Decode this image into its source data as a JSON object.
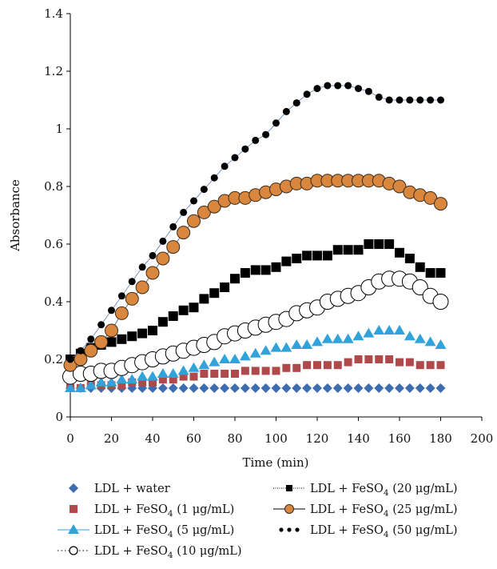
{
  "chart_data": {
    "type": "scatter",
    "title": "",
    "xlabel": "Time (min)",
    "ylabel": "Absorbance",
    "xlim": [
      0,
      200
    ],
    "ylim": [
      0,
      1.4
    ],
    "xticks": [
      0,
      20,
      40,
      60,
      80,
      100,
      120,
      140,
      160,
      180,
      200
    ],
    "yticks": [
      0,
      0.2,
      0.4,
      0.6,
      0.8,
      1,
      1.2,
      1.4
    ],
    "xtick_labels": [
      "0",
      "20",
      "40",
      "60",
      "80",
      "100",
      "120",
      "140",
      "160",
      "180",
      "200"
    ],
    "ytick_labels": [
      "0",
      "0.2",
      "0.4",
      "0.6",
      "0.8",
      "1",
      "1.2",
      "1.4"
    ],
    "grid": false,
    "legend_position": "bottom",
    "x": [
      0,
      5,
      10,
      15,
      20,
      25,
      30,
      35,
      40,
      45,
      50,
      55,
      60,
      65,
      70,
      75,
      80,
      85,
      90,
      95,
      100,
      105,
      110,
      115,
      120,
      125,
      130,
      135,
      140,
      145,
      150,
      155,
      160,
      165,
      170,
      175,
      180
    ],
    "series": [
      {
        "name": "LDL + water",
        "label_main": "LDL + water",
        "label_sub": "",
        "label_tail": "",
        "marker": "diamond",
        "color": "#3d6db0",
        "values": [
          0.1,
          0.1,
          0.1,
          0.1,
          0.1,
          0.1,
          0.1,
          0.1,
          0.1,
          0.1,
          0.1,
          0.1,
          0.1,
          0.1,
          0.1,
          0.1,
          0.1,
          0.1,
          0.1,
          0.1,
          0.1,
          0.1,
          0.1,
          0.1,
          0.1,
          0.1,
          0.1,
          0.1,
          0.1,
          0.1,
          0.1,
          0.1,
          0.1,
          0.1,
          0.1,
          0.1,
          0.1
        ]
      },
      {
        "name": "LDL + FeSO4 (1 μg/mL)",
        "label_main": "LDL + FeSO",
        "label_sub": "4",
        "label_tail": " (1 μg/mL)",
        "marker": "square",
        "color": "#b04a4a",
        "values": [
          0.1,
          0.1,
          0.11,
          0.11,
          0.11,
          0.11,
          0.12,
          0.12,
          0.12,
          0.13,
          0.13,
          0.14,
          0.14,
          0.15,
          0.15,
          0.15,
          0.15,
          0.16,
          0.16,
          0.16,
          0.16,
          0.17,
          0.17,
          0.18,
          0.18,
          0.18,
          0.18,
          0.19,
          0.2,
          0.2,
          0.2,
          0.2,
          0.19,
          0.19,
          0.18,
          0.18,
          0.18
        ]
      },
      {
        "name": "LDL + FeSO4 (5 μg/mL)",
        "label_main": "LDL + FeSO",
        "label_sub": "4",
        "label_tail": " (5 μg/mL)",
        "marker": "triangle",
        "color": "#31a3da",
        "values": [
          0.1,
          0.1,
          0.11,
          0.12,
          0.12,
          0.13,
          0.13,
          0.14,
          0.14,
          0.15,
          0.15,
          0.16,
          0.17,
          0.18,
          0.19,
          0.2,
          0.2,
          0.21,
          0.22,
          0.23,
          0.24,
          0.24,
          0.25,
          0.25,
          0.26,
          0.27,
          0.27,
          0.27,
          0.28,
          0.29,
          0.3,
          0.3,
          0.3,
          0.28,
          0.27,
          0.26,
          0.25
        ]
      },
      {
        "name": "LDL + FeSO4 (10 μg/mL)",
        "label_main": "LDL + FeSO",
        "label_sub": "4",
        "label_tail": " (10 μg/mL)",
        "marker": "open-circle",
        "color": "#000000",
        "values": [
          0.14,
          0.15,
          0.15,
          0.16,
          0.16,
          0.17,
          0.18,
          0.19,
          0.2,
          0.21,
          0.22,
          0.23,
          0.24,
          0.25,
          0.26,
          0.28,
          0.29,
          0.3,
          0.31,
          0.32,
          0.33,
          0.34,
          0.36,
          0.37,
          0.38,
          0.4,
          0.41,
          0.42,
          0.43,
          0.45,
          0.47,
          0.48,
          0.48,
          0.47,
          0.45,
          0.42,
          0.4
        ]
      },
      {
        "name": "LDL + FeSO4 (20 μg/mL)",
        "label_main": "LDL + FeSO",
        "label_sub": "4",
        "label_tail": " (20 μg/mL)",
        "marker": "filled-square",
        "color": "#000000",
        "values": [
          0.2,
          0.22,
          0.24,
          0.25,
          0.26,
          0.27,
          0.28,
          0.29,
          0.3,
          0.33,
          0.35,
          0.37,
          0.38,
          0.41,
          0.43,
          0.45,
          0.48,
          0.5,
          0.51,
          0.51,
          0.52,
          0.54,
          0.55,
          0.56,
          0.56,
          0.56,
          0.58,
          0.58,
          0.58,
          0.6,
          0.6,
          0.6,
          0.57,
          0.55,
          0.52,
          0.5,
          0.5
        ]
      },
      {
        "name": "LDL + FeSO4 (25 μg/mL)",
        "label_main": "LDL + FeSO",
        "label_sub": "4",
        "label_tail": " (25 μg/mL)",
        "marker": "orange-circle",
        "color": "#d9873e",
        "values": [
          0.18,
          0.2,
          0.23,
          0.26,
          0.3,
          0.36,
          0.41,
          0.45,
          0.5,
          0.55,
          0.59,
          0.64,
          0.68,
          0.71,
          0.73,
          0.75,
          0.76,
          0.76,
          0.77,
          0.78,
          0.79,
          0.8,
          0.81,
          0.81,
          0.82,
          0.82,
          0.82,
          0.82,
          0.82,
          0.82,
          0.82,
          0.81,
          0.8,
          0.78,
          0.77,
          0.76,
          0.74
        ]
      },
      {
        "name": "LDL + FeSO4 (50 μg/mL)",
        "label_main": "LDL + FeSO",
        "label_sub": "4",
        "label_tail": " (50 μg/mL)",
        "marker": "dots",
        "color": "#000000",
        "values": [
          0.2,
          0.23,
          0.27,
          0.32,
          0.37,
          0.42,
          0.47,
          0.52,
          0.56,
          0.61,
          0.66,
          0.71,
          0.75,
          0.79,
          0.83,
          0.87,
          0.9,
          0.93,
          0.96,
          0.98,
          1.02,
          1.06,
          1.09,
          1.12,
          1.14,
          1.15,
          1.15,
          1.15,
          1.14,
          1.13,
          1.11,
          1.1,
          1.1,
          1.1,
          1.1,
          1.1,
          1.1
        ]
      }
    ]
  }
}
